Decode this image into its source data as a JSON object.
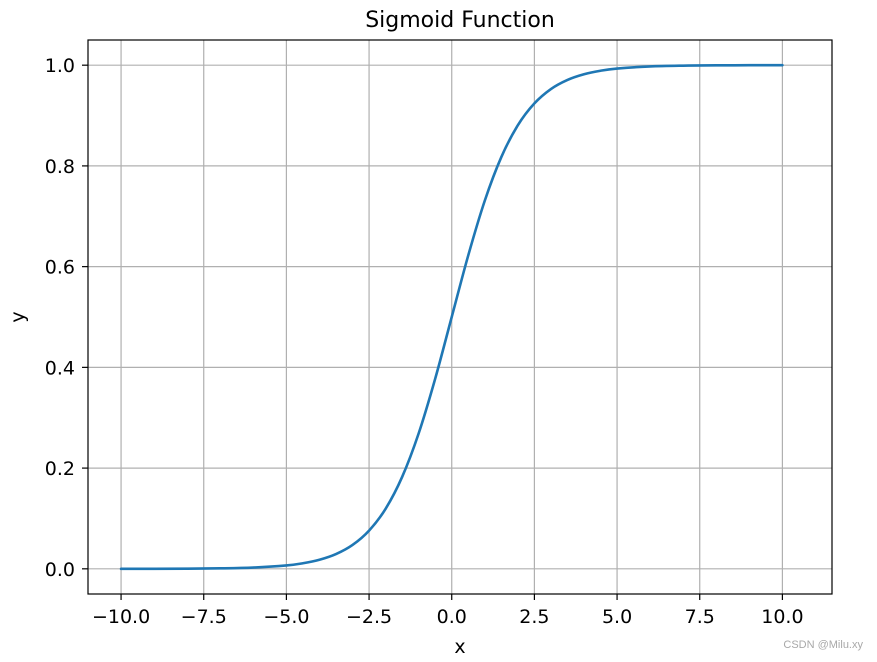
{
  "chart_data": {
    "type": "line",
    "title": "Sigmoid Function",
    "xlabel": "x",
    "ylabel": "y",
    "xlim": [
      -11.0,
      11.5
    ],
    "ylim": [
      -0.05,
      1.05
    ],
    "grid": true,
    "legend": "none",
    "xticks": [
      -10.0,
      -7.5,
      -5.0,
      -2.5,
      0.0,
      2.5,
      5.0,
      7.5,
      10.0
    ],
    "xtick_labels": [
      "−10.0",
      "−7.5",
      "−5.0",
      "−2.5",
      "0.0",
      "2.5",
      "5.0",
      "7.5",
      "10.0"
    ],
    "yticks": [
      0.0,
      0.2,
      0.4,
      0.6,
      0.8,
      1.0
    ],
    "ytick_labels": [
      "0.0",
      "0.2",
      "0.4",
      "0.6",
      "0.8",
      "1.0"
    ],
    "series": [
      {
        "color": "#1f77b4",
        "x": [
          -10,
          -9,
          -8,
          -7,
          -6,
          -5,
          -4.5,
          -4,
          -3.5,
          -3,
          -2.5,
          -2,
          -1.5,
          -1,
          -0.5,
          0,
          0.5,
          1,
          1.5,
          2,
          2.5,
          3,
          3.5,
          4,
          4.5,
          5,
          6,
          7,
          8,
          9,
          10
        ],
        "y": [
          0.0,
          0.0001,
          0.0003,
          0.0009,
          0.0025,
          0.0067,
          0.011,
          0.018,
          0.0293,
          0.0474,
          0.0759,
          0.1192,
          0.1824,
          0.2689,
          0.3775,
          0.5,
          0.6225,
          0.7311,
          0.8176,
          0.8808,
          0.9241,
          0.9526,
          0.9707,
          0.982,
          0.989,
          0.9933,
          0.9975,
          0.9991,
          0.9997,
          0.9999,
          1.0
        ]
      }
    ]
  },
  "watermark": "CSDN @Milu.xy",
  "colors": {
    "line": "#1f77b4",
    "grid": "#b0b0b0",
    "axes": "#000000",
    "background": "#ffffff"
  }
}
